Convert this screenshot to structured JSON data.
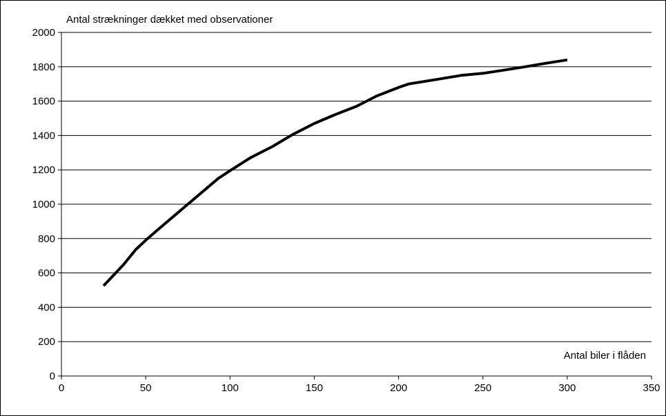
{
  "chart_data": {
    "type": "line",
    "ylabel": "Antal strækninger dækket med observationer",
    "xlabel": "Antal biler i flåden",
    "xlim": [
      0,
      350
    ],
    "ylim": [
      0,
      2000
    ],
    "x_ticks": [
      0,
      50,
      100,
      150,
      200,
      250,
      300,
      350
    ],
    "y_ticks": [
      0,
      200,
      400,
      600,
      800,
      1000,
      1200,
      1400,
      1600,
      1800,
      2000
    ],
    "grid": "horizontal",
    "series": [
      {
        "color": "#000000",
        "points": [
          [
            25,
            525
          ],
          [
            37,
            650
          ],
          [
            44,
            735
          ],
          [
            50,
            790
          ],
          [
            57,
            850
          ],
          [
            75,
            1000
          ],
          [
            93,
            1150
          ],
          [
            100,
            1195
          ],
          [
            112,
            1270
          ],
          [
            125,
            1335
          ],
          [
            137,
            1405
          ],
          [
            150,
            1470
          ],
          [
            162,
            1520
          ],
          [
            175,
            1570
          ],
          [
            187,
            1630
          ],
          [
            200,
            1680
          ],
          [
            206,
            1700
          ],
          [
            225,
            1730
          ],
          [
            237,
            1750
          ],
          [
            250,
            1762
          ],
          [
            262,
            1780
          ],
          [
            275,
            1800
          ],
          [
            287,
            1820
          ],
          [
            300,
            1840
          ]
        ]
      }
    ]
  }
}
